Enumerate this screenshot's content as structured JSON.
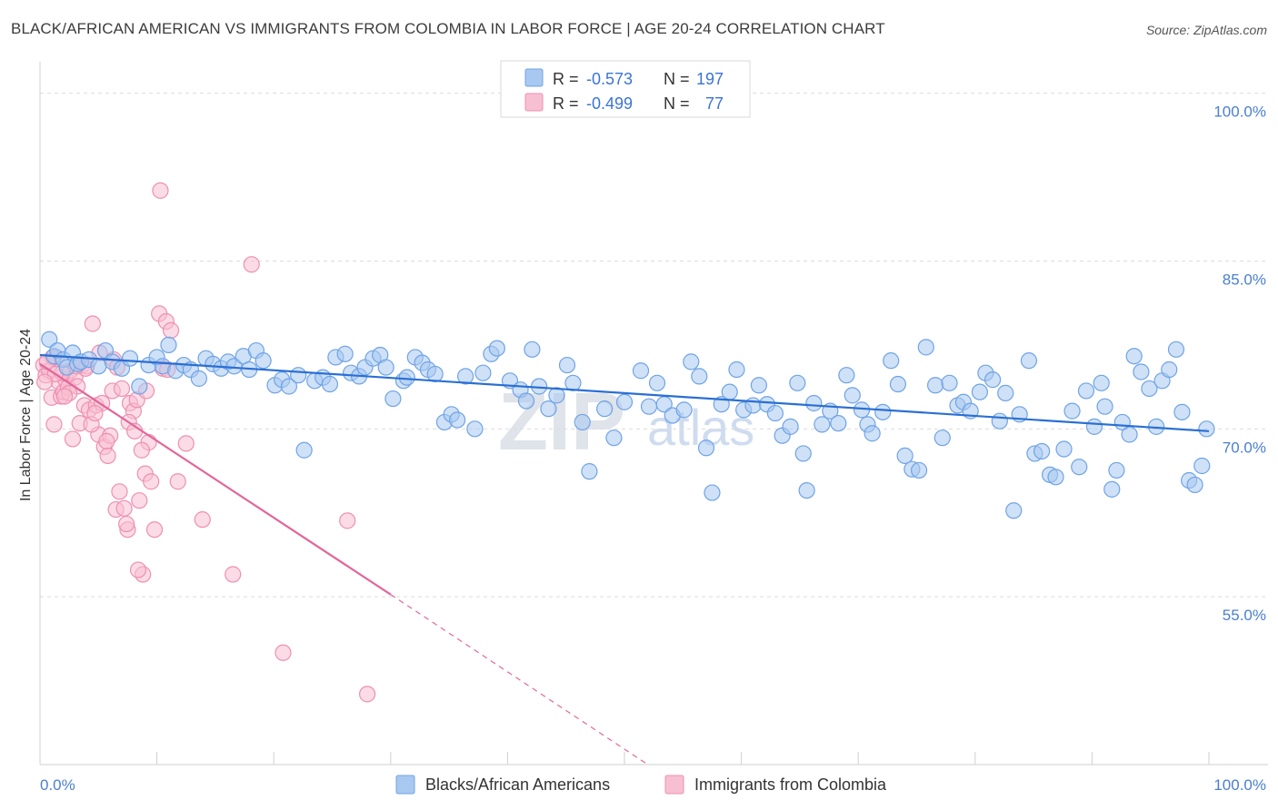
{
  "title": "BLACK/AFRICAN AMERICAN VS IMMIGRANTS FROM COLOMBIA IN LABOR FORCE | AGE 20-24 CORRELATION CHART",
  "source": "Source: ZipAtlas.com",
  "watermark": {
    "zip": "ZIP",
    "atlas": "atlas"
  },
  "chart_data": {
    "type": "scatter",
    "title": "BLACK/AFRICAN AMERICAN VS IMMIGRANTS FROM COLOMBIA IN LABOR FORCE | AGE 20-24 CORRELATION CHART",
    "xlabel": "",
    "ylabel": "In Labor Force | Age 20-24",
    "xlim": [
      0,
      100
    ],
    "ylim": [
      40,
      102
    ],
    "y_ticks": [
      {
        "value": 100,
        "label": "100.0%"
      },
      {
        "value": 85,
        "label": "85.0%"
      },
      {
        "value": 70,
        "label": "70.0%"
      },
      {
        "value": 55,
        "label": "55.0%"
      }
    ],
    "x_tick_labels": [
      {
        "value": 0,
        "label": "0.0%"
      },
      {
        "value": 100,
        "label": "100.0%"
      }
    ],
    "grid": true,
    "legend_position": "top-center",
    "series": [
      {
        "name": "Blacks/African Americans",
        "color": "#6fa3e6",
        "fill": "#a8c8f0",
        "R": "-0.573",
        "N": "197",
        "trend": {
          "x": [
            0,
            100
          ],
          "y": [
            76.6,
            69.8
          ],
          "style": "solid",
          "color": "#2a6fd4"
        },
        "points": [
          [
            0.8,
            78.0
          ],
          [
            1.2,
            76.5
          ],
          [
            1.5,
            77.0
          ],
          [
            2.0,
            76.2
          ],
          [
            2.3,
            75.5
          ],
          [
            2.8,
            76.8
          ],
          [
            3.2,
            75.8
          ],
          [
            3.5,
            76.0
          ],
          [
            4.2,
            76.2
          ],
          [
            5.0,
            75.6
          ],
          [
            5.6,
            77.0
          ],
          [
            6.2,
            76.0
          ],
          [
            7.0,
            75.4
          ],
          [
            7.7,
            76.3
          ],
          [
            8.5,
            73.8
          ],
          [
            9.3,
            75.7
          ],
          [
            10.0,
            76.4
          ],
          [
            10.5,
            75.6
          ],
          [
            11.0,
            77.5
          ],
          [
            11.6,
            75.2
          ],
          [
            12.3,
            75.7
          ],
          [
            12.9,
            75.3
          ],
          [
            13.6,
            74.5
          ],
          [
            14.2,
            76.3
          ],
          [
            14.8,
            75.8
          ],
          [
            15.5,
            75.4
          ],
          [
            16.1,
            76.0
          ],
          [
            16.6,
            75.6
          ],
          [
            17.4,
            76.5
          ],
          [
            17.9,
            75.3
          ],
          [
            18.5,
            77.0
          ],
          [
            19.1,
            76.1
          ],
          [
            20.1,
            73.9
          ],
          [
            20.7,
            74.4
          ],
          [
            21.3,
            73.8
          ],
          [
            22.1,
            74.8
          ],
          [
            22.6,
            68.1
          ],
          [
            23.5,
            74.3
          ],
          [
            24.2,
            74.6
          ],
          [
            24.8,
            74.0
          ],
          [
            25.3,
            76.4
          ],
          [
            26.1,
            76.7
          ],
          [
            26.6,
            75.0
          ],
          [
            27.3,
            74.7
          ],
          [
            27.8,
            75.5
          ],
          [
            28.5,
            76.3
          ],
          [
            29.1,
            76.6
          ],
          [
            29.6,
            75.5
          ],
          [
            30.2,
            72.7
          ],
          [
            31.1,
            74.3
          ],
          [
            31.4,
            74.6
          ],
          [
            32.1,
            76.4
          ],
          [
            32.7,
            75.9
          ],
          [
            33.2,
            75.3
          ],
          [
            33.8,
            74.9
          ],
          [
            34.6,
            70.6
          ],
          [
            35.2,
            71.3
          ],
          [
            35.7,
            70.8
          ],
          [
            36.4,
            74.7
          ],
          [
            37.2,
            70.0
          ],
          [
            37.9,
            75.0
          ],
          [
            38.6,
            76.7
          ],
          [
            39.1,
            77.2
          ],
          [
            40.2,
            74.3
          ],
          [
            41.1,
            73.5
          ],
          [
            41.6,
            72.5
          ],
          [
            42.1,
            77.1
          ],
          [
            42.7,
            73.8
          ],
          [
            43.5,
            71.8
          ],
          [
            44.2,
            73.0
          ],
          [
            45.1,
            75.7
          ],
          [
            45.6,
            74.1
          ],
          [
            46.4,
            70.6
          ],
          [
            47.0,
            66.2
          ],
          [
            48.3,
            71.8
          ],
          [
            49.1,
            69.2
          ],
          [
            50.0,
            72.4
          ],
          [
            51.4,
            75.2
          ],
          [
            52.1,
            72.0
          ],
          [
            52.8,
            74.1
          ],
          [
            53.4,
            72.2
          ],
          [
            54.1,
            71.2
          ],
          [
            55.1,
            71.7
          ],
          [
            55.7,
            76.0
          ],
          [
            56.4,
            74.7
          ],
          [
            57.0,
            68.3
          ],
          [
            57.5,
            64.3
          ],
          [
            58.3,
            72.2
          ],
          [
            59.0,
            73.3
          ],
          [
            59.6,
            75.3
          ],
          [
            60.2,
            71.7
          ],
          [
            61.0,
            72.1
          ],
          [
            61.5,
            73.9
          ],
          [
            62.2,
            72.2
          ],
          [
            62.9,
            71.4
          ],
          [
            63.5,
            69.4
          ],
          [
            64.2,
            70.2
          ],
          [
            64.8,
            74.1
          ],
          [
            65.3,
            67.8
          ],
          [
            65.6,
            64.5
          ],
          [
            66.2,
            72.3
          ],
          [
            66.9,
            70.4
          ],
          [
            67.6,
            71.6
          ],
          [
            68.3,
            70.5
          ],
          [
            69.0,
            74.8
          ],
          [
            69.5,
            73.0
          ],
          [
            70.3,
            71.7
          ],
          [
            70.8,
            70.4
          ],
          [
            71.2,
            69.6
          ],
          [
            72.1,
            71.5
          ],
          [
            72.8,
            76.1
          ],
          [
            73.4,
            74.0
          ],
          [
            74.0,
            67.6
          ],
          [
            74.6,
            66.4
          ],
          [
            75.2,
            66.3
          ],
          [
            75.8,
            77.3
          ],
          [
            76.6,
            73.9
          ],
          [
            77.2,
            69.2
          ],
          [
            77.8,
            74.1
          ],
          [
            78.5,
            72.1
          ],
          [
            79.0,
            72.4
          ],
          [
            79.6,
            71.6
          ],
          [
            80.4,
            73.3
          ],
          [
            80.9,
            75.0
          ],
          [
            81.5,
            74.4
          ],
          [
            82.1,
            70.7
          ],
          [
            82.6,
            73.2
          ],
          [
            83.3,
            62.7
          ],
          [
            83.8,
            71.3
          ],
          [
            84.6,
            76.1
          ],
          [
            85.1,
            67.8
          ],
          [
            85.7,
            68.0
          ],
          [
            86.4,
            65.9
          ],
          [
            86.9,
            65.7
          ],
          [
            87.6,
            68.2
          ],
          [
            88.3,
            71.6
          ],
          [
            88.9,
            66.6
          ],
          [
            89.5,
            73.4
          ],
          [
            90.2,
            70.2
          ],
          [
            90.8,
            74.1
          ],
          [
            91.1,
            72.0
          ],
          [
            91.7,
            64.6
          ],
          [
            92.1,
            66.3
          ],
          [
            92.6,
            70.6
          ],
          [
            93.2,
            69.5
          ],
          [
            93.6,
            76.5
          ],
          [
            94.2,
            75.1
          ],
          [
            94.9,
            73.6
          ],
          [
            95.5,
            70.2
          ],
          [
            96.0,
            74.3
          ],
          [
            96.6,
            75.3
          ],
          [
            97.2,
            77.1
          ],
          [
            97.7,
            71.5
          ],
          [
            98.3,
            65.4
          ],
          [
            98.8,
            65.0
          ],
          [
            99.4,
            66.7
          ],
          [
            99.8,
            70.0
          ]
        ]
      },
      {
        "name": "Immigrants from Colombia",
        "color": "#ef8fb0",
        "fill": "#f7bfd2",
        "R": "-0.499",
        "N": "77",
        "trend": {
          "x": [
            0,
            30,
            52
          ],
          "y": [
            75.8,
            55.2,
            40.0
          ],
          "style": "solid-then-dashed",
          "color": "#e2679a"
        },
        "points": [
          [
            0.3,
            75.7
          ],
          [
            0.5,
            74.8
          ],
          [
            0.8,
            75.2
          ],
          [
            1.0,
            72.8
          ],
          [
            1.2,
            70.4
          ],
          [
            1.4,
            76.4
          ],
          [
            1.6,
            74.2
          ],
          [
            1.8,
            72.9
          ],
          [
            2.0,
            73.3
          ],
          [
            2.2,
            74.4
          ],
          [
            2.4,
            73.7
          ],
          [
            2.6,
            75.2
          ],
          [
            2.8,
            69.1
          ],
          [
            3.0,
            74.6
          ],
          [
            3.2,
            73.8
          ],
          [
            3.4,
            70.5
          ],
          [
            3.6,
            75.7
          ],
          [
            3.8,
            72.1
          ],
          [
            4.0,
            75.6
          ],
          [
            4.2,
            71.7
          ],
          [
            4.5,
            79.4
          ],
          [
            4.8,
            72.1
          ],
          [
            5.0,
            69.5
          ],
          [
            5.3,
            72.3
          ],
          [
            5.5,
            68.4
          ],
          [
            5.8,
            67.6
          ],
          [
            6.0,
            69.4
          ],
          [
            6.2,
            73.4
          ],
          [
            6.5,
            62.8
          ],
          [
            6.8,
            64.4
          ],
          [
            7.0,
            73.6
          ],
          [
            7.2,
            62.9
          ],
          [
            7.5,
            61.0
          ],
          [
            7.7,
            72.3
          ],
          [
            8.0,
            71.6
          ],
          [
            8.3,
            72.6
          ],
          [
            8.5,
            63.6
          ],
          [
            8.8,
            57.0
          ],
          [
            9.0,
            66.0
          ],
          [
            9.3,
            68.8
          ],
          [
            9.5,
            65.3
          ],
          [
            9.8,
            61.0
          ],
          [
            10.2,
            80.3
          ],
          [
            10.5,
            75.4
          ],
          [
            10.8,
            79.6
          ],
          [
            11.2,
            78.8
          ],
          [
            11.8,
            65.3
          ],
          [
            12.5,
            68.7
          ],
          [
            13.9,
            61.9
          ],
          [
            16.5,
            57.0
          ],
          [
            18.1,
            84.7
          ],
          [
            20.8,
            50.0
          ],
          [
            26.3,
            61.8
          ],
          [
            28.0,
            46.3
          ],
          [
            1.1,
            76.4
          ],
          [
            1.9,
            75.0
          ],
          [
            3.9,
            75.4
          ],
          [
            6.3,
            76.2
          ],
          [
            9.1,
            73.4
          ],
          [
            10.9,
            75.3
          ],
          [
            2.5,
            73.2
          ],
          [
            1.3,
            74.9
          ],
          [
            4.4,
            70.4
          ],
          [
            5.7,
            68.9
          ],
          [
            7.6,
            70.6
          ],
          [
            8.1,
            69.8
          ],
          [
            8.7,
            68.1
          ],
          [
            0.6,
            76.0
          ],
          [
            2.1,
            72.9
          ],
          [
            4.7,
            71.4
          ],
          [
            6.6,
            75.5
          ],
          [
            0.4,
            74.2
          ],
          [
            3.1,
            75.6
          ],
          [
            5.1,
            76.8
          ],
          [
            7.4,
            61.5
          ],
          [
            10.3,
            91.3
          ],
          [
            8.4,
            57.4
          ]
        ]
      }
    ]
  },
  "bottom_legend": [
    {
      "label": "Blacks/African Americans",
      "fill": "#a8c8f0",
      "stroke": "#6fa3e6"
    },
    {
      "label": "Immigrants from Colombia",
      "fill": "#f7bfd2",
      "stroke": "#ef8fb0"
    }
  ],
  "top_legend": {
    "r_label": "R =",
    "n_label": "N ="
  }
}
